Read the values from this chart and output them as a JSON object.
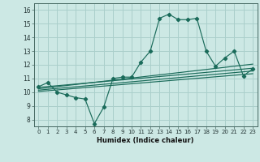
{
  "title": "",
  "xlabel": "Humidex (Indice chaleur)",
  "bg_color": "#cce8e4",
  "grid_color": "#aacfcb",
  "line_color": "#1a6b5a",
  "xlim": [
    -0.5,
    23.5
  ],
  "ylim": [
    7.5,
    16.5
  ],
  "xticks": [
    0,
    1,
    2,
    3,
    4,
    5,
    6,
    7,
    8,
    9,
    10,
    11,
    12,
    13,
    14,
    15,
    16,
    17,
    18,
    19,
    20,
    21,
    22,
    23
  ],
  "yticks": [
    8,
    9,
    10,
    11,
    12,
    13,
    14,
    15,
    16
  ],
  "main_x": [
    0,
    1,
    2,
    3,
    4,
    5,
    6,
    7,
    8,
    9,
    10,
    11,
    12,
    13,
    14,
    15,
    16,
    17,
    18,
    19,
    20,
    21,
    22,
    23
  ],
  "main_y": [
    10.4,
    10.7,
    10.0,
    9.8,
    9.6,
    9.5,
    7.7,
    8.9,
    11.0,
    11.1,
    11.1,
    12.2,
    13.0,
    15.4,
    15.7,
    15.3,
    15.3,
    15.4,
    13.0,
    11.9,
    12.5,
    13.0,
    11.2,
    11.7
  ],
  "line1_x": [
    0,
    23
  ],
  "line1_y": [
    10.35,
    11.75
  ],
  "line2_x": [
    0,
    23
  ],
  "line2_y": [
    10.25,
    12.05
  ],
  "line3_x": [
    0,
    23
  ],
  "line3_y": [
    10.15,
    11.55
  ],
  "line4_x": [
    0,
    23
  ],
  "line4_y": [
    10.05,
    11.35
  ]
}
